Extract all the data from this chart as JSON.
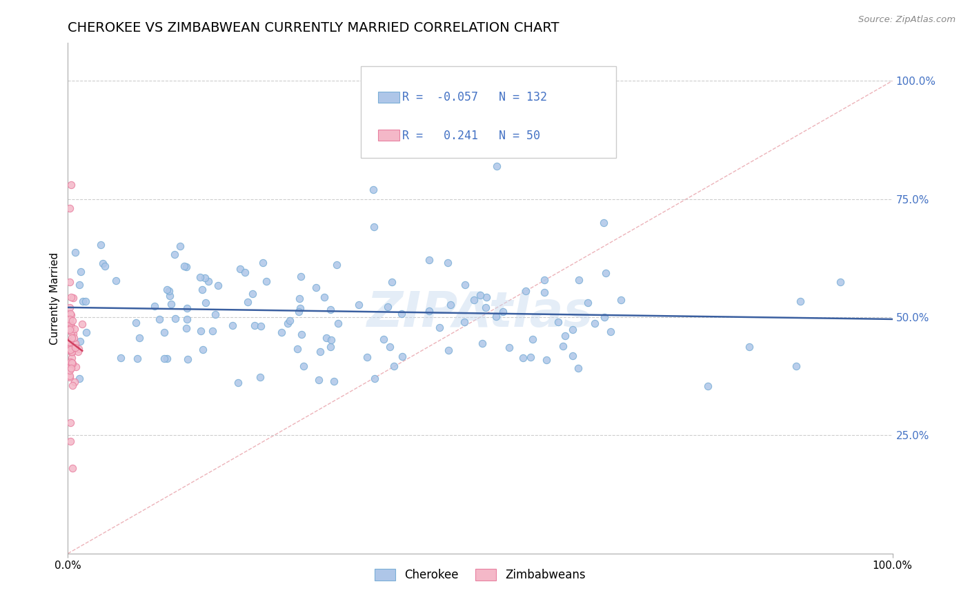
{
  "title": "CHEROKEE VS ZIMBABWEAN CURRENTLY MARRIED CORRELATION CHART",
  "source_text": "Source: ZipAtlas.com",
  "ylabel": "Currently Married",
  "watermark": "ZIPAtlas",
  "xlim": [
    0.0,
    1.0
  ],
  "ylim": [
    0.0,
    1.08
  ],
  "x_ticks": [
    0.0,
    1.0
  ],
  "x_tick_labels": [
    "0.0%",
    "100.0%"
  ],
  "y_ticks": [
    0.25,
    0.5,
    0.75,
    1.0
  ],
  "y_tick_labels": [
    "25.0%",
    "50.0%",
    "75.0%",
    "100.0%"
  ],
  "cherokee_color": "#aec6e8",
  "cherokee_edge_color": "#7aaed6",
  "zimbabwean_color": "#f4b8c8",
  "zimbabwean_edge_color": "#e880a0",
  "cherokee_line_color": "#3a5fa0",
  "zimbabwean_line_color": "#d04060",
  "diagonal_color": "#e8a0a8",
  "cherokee_R": -0.057,
  "cherokee_N": 132,
  "zimbabwean_R": 0.241,
  "zimbabwean_N": 50,
  "grid_color": "#cccccc",
  "background_color": "#ffffff",
  "title_fontsize": 14,
  "legend_R_color": "#c03050",
  "tick_label_color": "#4472c4"
}
